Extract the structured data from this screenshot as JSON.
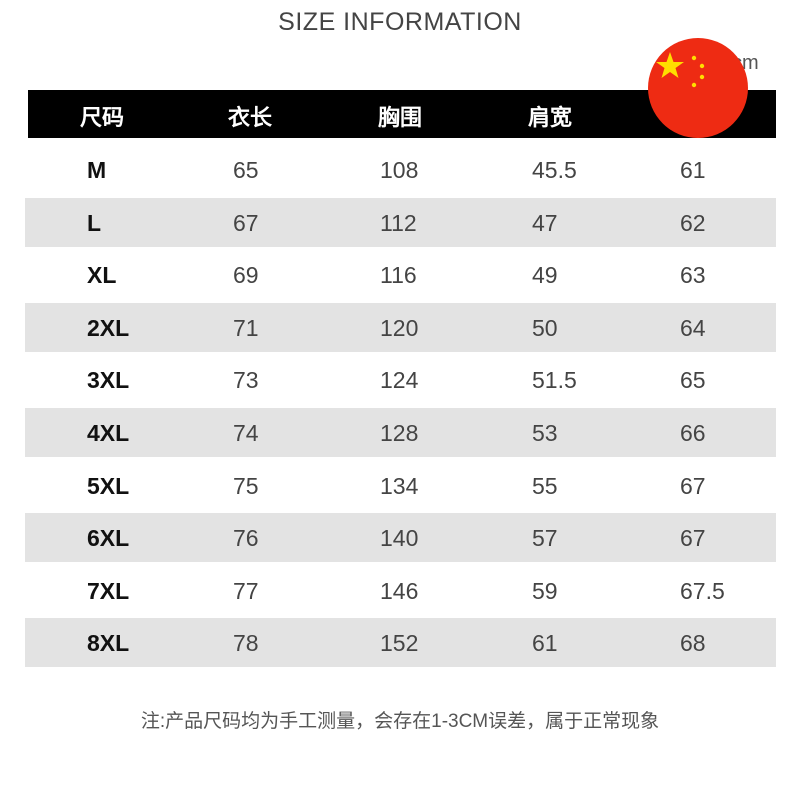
{
  "title": "SIZE INFORMATION",
  "unit": "cm",
  "headers": [
    "尺码",
    "衣长",
    "胸围",
    "肩宽",
    ""
  ],
  "rows": [
    [
      "M",
      "65",
      "108",
      "45.5",
      "61"
    ],
    [
      "L",
      "67",
      "112",
      "47",
      "62"
    ],
    [
      "XL",
      "69",
      "116",
      "49",
      "63"
    ],
    [
      "2XL",
      "71",
      "120",
      "50",
      "64"
    ],
    [
      "3XL",
      "73",
      "124",
      "51.5",
      "65"
    ],
    [
      "4XL",
      "74",
      "128",
      "53",
      "66"
    ],
    [
      "5XL",
      "75",
      "134",
      "55",
      "67"
    ],
    [
      "6XL",
      "76",
      "140",
      "57",
      "67"
    ],
    [
      "7XL",
      "77",
      "146",
      "59",
      "67.5"
    ],
    [
      "8XL",
      "78",
      "152",
      "61",
      "68"
    ]
  ],
  "note": "注:产品尺码均为手工测量，会存在1-3CM误差，属于正常现象",
  "colors": {
    "header_bg": "#000000",
    "stripe": "#e3e3e3",
    "flag_red": "#ee2b13",
    "flag_star": "#ffde00"
  },
  "icons": {
    "flag": "china-flag-icon"
  }
}
